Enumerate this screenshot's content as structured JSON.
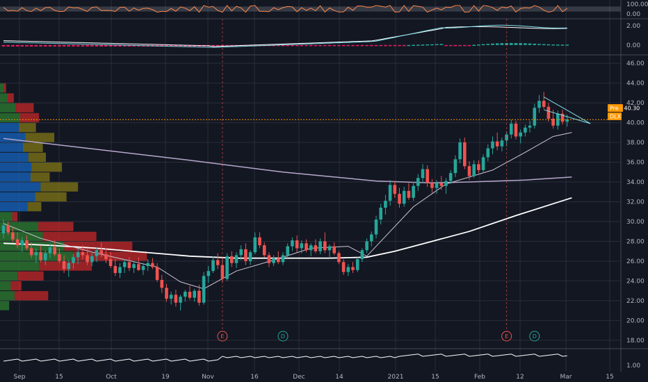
{
  "colors": {
    "background": "#131722",
    "grid": "#2a2e39",
    "separator": "#444a57",
    "up": "#26a69a",
    "down": "#ef5350",
    "ma_fast": "#cfc7d9",
    "ma_mid": "#ffffff",
    "ma_slow": "#b7a7cc",
    "rsi": "#ff8a4c",
    "macd": "#80deea",
    "signal": "#ffffff",
    "price_line": "#ff9800",
    "vp_up": "#2e7d32",
    "vp_down": "#c62828",
    "vp_up_va": "#1565c0",
    "vp_down_va": "#827717",
    "earnings": "#ef5350",
    "dividend": "#26a69a"
  },
  "chart_data": {
    "type": "candlestick",
    "symbol": "DLX",
    "x_labels": [
      "Sep",
      "15",
      "Oct",
      "19",
      "Nov",
      "16",
      "Dec",
      "14",
      "2021",
      "15",
      "Feb",
      "12",
      "Mar",
      "15"
    ],
    "y_ticks": [
      "46.00",
      "44.00",
      "42.00",
      "40.00",
      "38.00",
      "36.00",
      "34.00",
      "32.00",
      "30.00",
      "28.00",
      "26.00",
      "24.00",
      "22.00",
      "20.00",
      "18.00"
    ],
    "ylim": [
      17.5,
      46.5
    ],
    "ohlc": [
      [
        28.8,
        30.2,
        28.3,
        29.6
      ],
      [
        29.6,
        30.0,
        28.6,
        28.9
      ],
      [
        28.9,
        29.4,
        27.9,
        28.2
      ],
      [
        28.2,
        28.9,
        27.3,
        27.6
      ],
      [
        27.6,
        28.4,
        26.9,
        28.1
      ],
      [
        28.1,
        28.6,
        27.1,
        27.3
      ],
      [
        27.3,
        27.9,
        26.3,
        26.6
      ],
      [
        26.6,
        27.3,
        25.8,
        26.9
      ],
      [
        26.9,
        27.6,
        25.9,
        26.1
      ],
      [
        26.1,
        27.1,
        25.6,
        26.8
      ],
      [
        26.8,
        27.8,
        26.3,
        27.4
      ],
      [
        27.4,
        28.1,
        26.5,
        26.7
      ],
      [
        26.7,
        27.3,
        25.8,
        26.0
      ],
      [
        26.0,
        26.6,
        24.8,
        25.2
      ],
      [
        25.2,
        26.1,
        24.4,
        25.8
      ],
      [
        25.8,
        26.7,
        25.2,
        26.4
      ],
      [
        26.4,
        27.3,
        25.7,
        26.9
      ],
      [
        26.9,
        27.6,
        26.2,
        26.6
      ],
      [
        26.6,
        27.2,
        25.6,
        25.9
      ],
      [
        25.9,
        26.8,
        25.5,
        26.5
      ],
      [
        26.5,
        27.4,
        25.9,
        27.1
      ],
      [
        27.1,
        27.9,
        26.4,
        26.7
      ],
      [
        26.7,
        27.3,
        25.8,
        26.2
      ],
      [
        26.2,
        26.9,
        25.3,
        25.5
      ],
      [
        25.5,
        26.2,
        24.5,
        24.8
      ],
      [
        24.8,
        25.8,
        24.3,
        25.4
      ],
      [
        25.4,
        26.2,
        24.8,
        25.9
      ],
      [
        25.9,
        26.4,
        25.0,
        25.3
      ],
      [
        25.3,
        26.0,
        24.8,
        25.7
      ],
      [
        25.7,
        26.4,
        25.0,
        25.1
      ],
      [
        25.1,
        25.8,
        24.6,
        25.5
      ],
      [
        25.5,
        26.2,
        25.0,
        25.8
      ],
      [
        25.8,
        26.3,
        25.2,
        25.4
      ],
      [
        25.4,
        25.8,
        23.9,
        24.1
      ],
      [
        24.1,
        24.6,
        22.8,
        23.3
      ],
      [
        23.3,
        23.7,
        21.9,
        22.2
      ],
      [
        22.2,
        22.9,
        21.6,
        22.6
      ],
      [
        22.6,
        23.1,
        21.4,
        21.8
      ],
      [
        21.8,
        22.6,
        21.0,
        22.4
      ],
      [
        22.4,
        23.1,
        21.9,
        22.9
      ],
      [
        22.9,
        23.5,
        22.1,
        22.3
      ],
      [
        22.3,
        23.2,
        21.9,
        23.0
      ],
      [
        23.0,
        23.6,
        21.5,
        21.8
      ],
      [
        21.8,
        24.9,
        21.6,
        24.5
      ],
      [
        24.5,
        25.5,
        23.8,
        25.0
      ],
      [
        25.0,
        26.5,
        24.8,
        26.1
      ],
      [
        26.1,
        26.8,
        25.2,
        25.6
      ],
      [
        25.6,
        26.3,
        23.9,
        24.2
      ],
      [
        24.2,
        26.8,
        24.0,
        26.5
      ],
      [
        26.5,
        27.0,
        25.4,
        25.8
      ],
      [
        25.8,
        26.9,
        25.3,
        26.6
      ],
      [
        26.6,
        27.6,
        26.1,
        27.2
      ],
      [
        27.2,
        27.8,
        25.6,
        26.0
      ],
      [
        26.0,
        27.1,
        25.6,
        26.9
      ],
      [
        26.9,
        28.9,
        26.7,
        28.4
      ],
      [
        28.4,
        28.9,
        27.3,
        27.6
      ],
      [
        27.6,
        27.9,
        26.4,
        26.6
      ],
      [
        26.6,
        26.9,
        25.4,
        25.8
      ],
      [
        25.8,
        26.6,
        25.5,
        26.3
      ],
      [
        26.3,
        27.0,
        25.7,
        25.9
      ],
      [
        25.9,
        26.9,
        25.6,
        26.6
      ],
      [
        26.6,
        27.8,
        26.3,
        27.5
      ],
      [
        27.5,
        28.4,
        27.0,
        28.1
      ],
      [
        28.1,
        28.6,
        26.9,
        27.3
      ],
      [
        27.3,
        28.1,
        26.8,
        27.8
      ],
      [
        27.8,
        28.2,
        26.9,
        27.1
      ],
      [
        27.1,
        27.8,
        26.5,
        27.6
      ],
      [
        27.6,
        28.2,
        26.8,
        27.0
      ],
      [
        27.0,
        28.3,
        26.7,
        28.0
      ],
      [
        28.0,
        28.9,
        26.8,
        27.1
      ],
      [
        27.1,
        27.7,
        26.3,
        27.5
      ],
      [
        27.5,
        27.9,
        26.6,
        26.8
      ],
      [
        26.8,
        27.0,
        25.7,
        25.9
      ],
      [
        25.9,
        26.2,
        24.6,
        24.9
      ],
      [
        24.9,
        25.7,
        24.5,
        25.4
      ],
      [
        25.4,
        25.9,
        24.8,
        25.1
      ],
      [
        25.1,
        26.4,
        24.9,
        26.2
      ],
      [
        26.2,
        27.3,
        25.9,
        27.1
      ],
      [
        27.1,
        28.3,
        26.8,
        28.0
      ],
      [
        28.0,
        29.0,
        27.5,
        28.7
      ],
      [
        28.7,
        30.6,
        28.3,
        30.2
      ],
      [
        30.2,
        31.8,
        29.7,
        31.4
      ],
      [
        31.4,
        32.7,
        30.7,
        32.1
      ],
      [
        32.1,
        34.2,
        31.6,
        33.7
      ],
      [
        33.7,
        34.1,
        32.4,
        32.8
      ],
      [
        32.8,
        33.4,
        31.4,
        31.8
      ],
      [
        31.8,
        33.5,
        31.5,
        33.1
      ],
      [
        33.1,
        33.9,
        32.2,
        32.4
      ],
      [
        32.4,
        34.0,
        32.1,
        33.6
      ],
      [
        33.6,
        34.8,
        33.1,
        34.4
      ],
      [
        34.4,
        35.8,
        33.9,
        35.3
      ],
      [
        35.3,
        35.7,
        33.5,
        33.9
      ],
      [
        33.9,
        34.3,
        32.9,
        33.4
      ],
      [
        33.4,
        34.2,
        32.8,
        33.9
      ],
      [
        33.9,
        34.6,
        33.2,
        33.6
      ],
      [
        33.6,
        34.4,
        32.8,
        34.1
      ],
      [
        34.1,
        35.2,
        33.8,
        34.9
      ],
      [
        34.9,
        36.7,
        34.5,
        36.3
      ],
      [
        36.3,
        38.4,
        35.9,
        38.0
      ],
      [
        38.0,
        38.5,
        35.3,
        35.6
      ],
      [
        35.6,
        36.1,
        34.2,
        34.6
      ],
      [
        34.6,
        36.2,
        34.4,
        35.8
      ],
      [
        35.8,
        36.2,
        34.9,
        35.2
      ],
      [
        35.2,
        36.8,
        34.9,
        36.5
      ],
      [
        36.5,
        37.8,
        36.1,
        37.4
      ],
      [
        37.4,
        38.6,
        36.8,
        38.1
      ],
      [
        38.1,
        39.0,
        37.2,
        37.6
      ],
      [
        37.6,
        38.5,
        37.1,
        38.2
      ],
      [
        38.2,
        39.1,
        37.6,
        38.8
      ],
      [
        38.8,
        40.3,
        38.4,
        39.9
      ],
      [
        39.9,
        40.2,
        38.3,
        38.6
      ],
      [
        38.6,
        39.3,
        37.9,
        39.0
      ],
      [
        39.0,
        39.8,
        38.6,
        39.5
      ],
      [
        39.5,
        40.2,
        39.0,
        39.7
      ],
      [
        39.7,
        41.9,
        39.4,
        41.5
      ],
      [
        41.5,
        42.8,
        41.0,
        42.2
      ],
      [
        42.2,
        43.1,
        41.4,
        41.6
      ],
      [
        41.6,
        42.0,
        40.1,
        40.4
      ],
      [
        40.4,
        41.3,
        39.4,
        39.7
      ],
      [
        39.7,
        41.2,
        39.3,
        40.9
      ],
      [
        40.9,
        41.3,
        39.8,
        40.1
      ],
      [
        40.1,
        40.8,
        39.6,
        40.3
      ]
    ],
    "ma_fast": [
      [
        0,
        29.8
      ],
      [
        8,
        28.3
      ],
      [
        20,
        26.8
      ],
      [
        33,
        25.4
      ],
      [
        38,
        23.9
      ],
      [
        43,
        23.2
      ],
      [
        50,
        25.0
      ],
      [
        58,
        26.1
      ],
      [
        66,
        27.3
      ],
      [
        74,
        27.5
      ],
      [
        78,
        26.5
      ],
      [
        82,
        28.5
      ],
      [
        88,
        31.5
      ],
      [
        95,
        33.8
      ],
      [
        105,
        35.2
      ],
      [
        112,
        37.0
      ],
      [
        118,
        38.6
      ],
      [
        122,
        39.0
      ]
    ],
    "ma_mid": [
      [
        0,
        27.8
      ],
      [
        10,
        27.6
      ],
      [
        20,
        27.3
      ],
      [
        30,
        26.9
      ],
      [
        40,
        26.5
      ],
      [
        50,
        26.3
      ],
      [
        60,
        26.3
      ],
      [
        70,
        26.3
      ],
      [
        78,
        26.4
      ],
      [
        84,
        27.0
      ],
      [
        92,
        28.0
      ],
      [
        100,
        29.0
      ],
      [
        110,
        30.6
      ],
      [
        118,
        31.8
      ],
      [
        122,
        32.4
      ]
    ],
    "ma_slow": [
      [
        0,
        38.4
      ],
      [
        20,
        37.3
      ],
      [
        40,
        36.2
      ],
      [
        60,
        35.0
      ],
      [
        80,
        34.1
      ],
      [
        92,
        33.9
      ],
      [
        100,
        34.0
      ],
      [
        112,
        34.2
      ],
      [
        122,
        34.5
      ]
    ],
    "volume_profile": [
      {
        "price": 44.5,
        "up": 0,
        "down": 0
      },
      {
        "price": 43.5,
        "up": 0.5,
        "down": 0.3
      },
      {
        "price": 42.5,
        "up": 1.0,
        "down": 0.8
      },
      {
        "price": 41.5,
        "up": 2.0,
        "down": 2.4
      },
      {
        "price": 40.5,
        "up": 2.6,
        "down": 2.5
      },
      {
        "price": 39.5,
        "up": 2.5,
        "down": 2.2
      },
      {
        "price": 38.5,
        "up": 3.3,
        "down": 3.8
      },
      {
        "price": 37.5,
        "up": 3.0,
        "down": 2.6
      },
      {
        "price": 36.5,
        "up": 3.7,
        "down": 2.3
      },
      {
        "price": 35.5,
        "up": 4.1,
        "down": 4.0
      },
      {
        "price": 34.5,
        "up": 4.0,
        "down": 2.5
      },
      {
        "price": 33.5,
        "up": 5.3,
        "down": 4.9
      },
      {
        "price": 32.5,
        "up": 4.6,
        "down": 4.1
      },
      {
        "price": 31.5,
        "up": 3.6,
        "down": 1.8
      },
      {
        "price": 30.5,
        "up": 1.6,
        "down": 0.7
      },
      {
        "price": 29.5,
        "up": 5.0,
        "down": 4.6
      },
      {
        "price": 28.5,
        "up": 5.6,
        "down": 7.0
      },
      {
        "price": 27.5,
        "up": 8.4,
        "down": 8.9
      },
      {
        "price": 26.5,
        "up": 9.6,
        "down": 9.6
      },
      {
        "price": 25.5,
        "up": 5.1,
        "down": 6.9
      },
      {
        "price": 24.5,
        "up": 2.3,
        "down": 3.4
      },
      {
        "price": 23.5,
        "up": 1.4,
        "down": 1.4
      },
      {
        "price": 22.5,
        "up": 1.9,
        "down": 4.4
      },
      {
        "price": 21.5,
        "up": 1.2,
        "down": 0
      }
    ],
    "price_line": 40.3,
    "last_price_label": "Pre · 40.30",
    "symbol_label": "DLX",
    "support_line": [
      [
        116,
        41.3
      ],
      [
        126,
        39.9
      ]
    ],
    "resistance_line": [
      [
        116,
        42.6
      ],
      [
        126,
        39.9
      ]
    ],
    "events": [
      {
        "type": "earnings",
        "label": "E",
        "index": 47
      },
      {
        "type": "dividend",
        "label": "D",
        "index": 60
      },
      {
        "type": "earnings",
        "label": "E",
        "index": 108
      },
      {
        "type": "dividend",
        "label": "D",
        "index": 114
      }
    ],
    "rsi": {
      "ticks": [
        "100.00",
        "0.00"
      ],
      "ylim": [
        0,
        100
      ],
      "band": [
        30,
        70
      ]
    },
    "macd": {
      "ticks": [
        "2.00",
        "0.00"
      ],
      "ylim": [
        -0.8,
        2.5
      ]
    },
    "volume_ratio": {
      "ticks": [
        "1.00"
      ]
    }
  }
}
